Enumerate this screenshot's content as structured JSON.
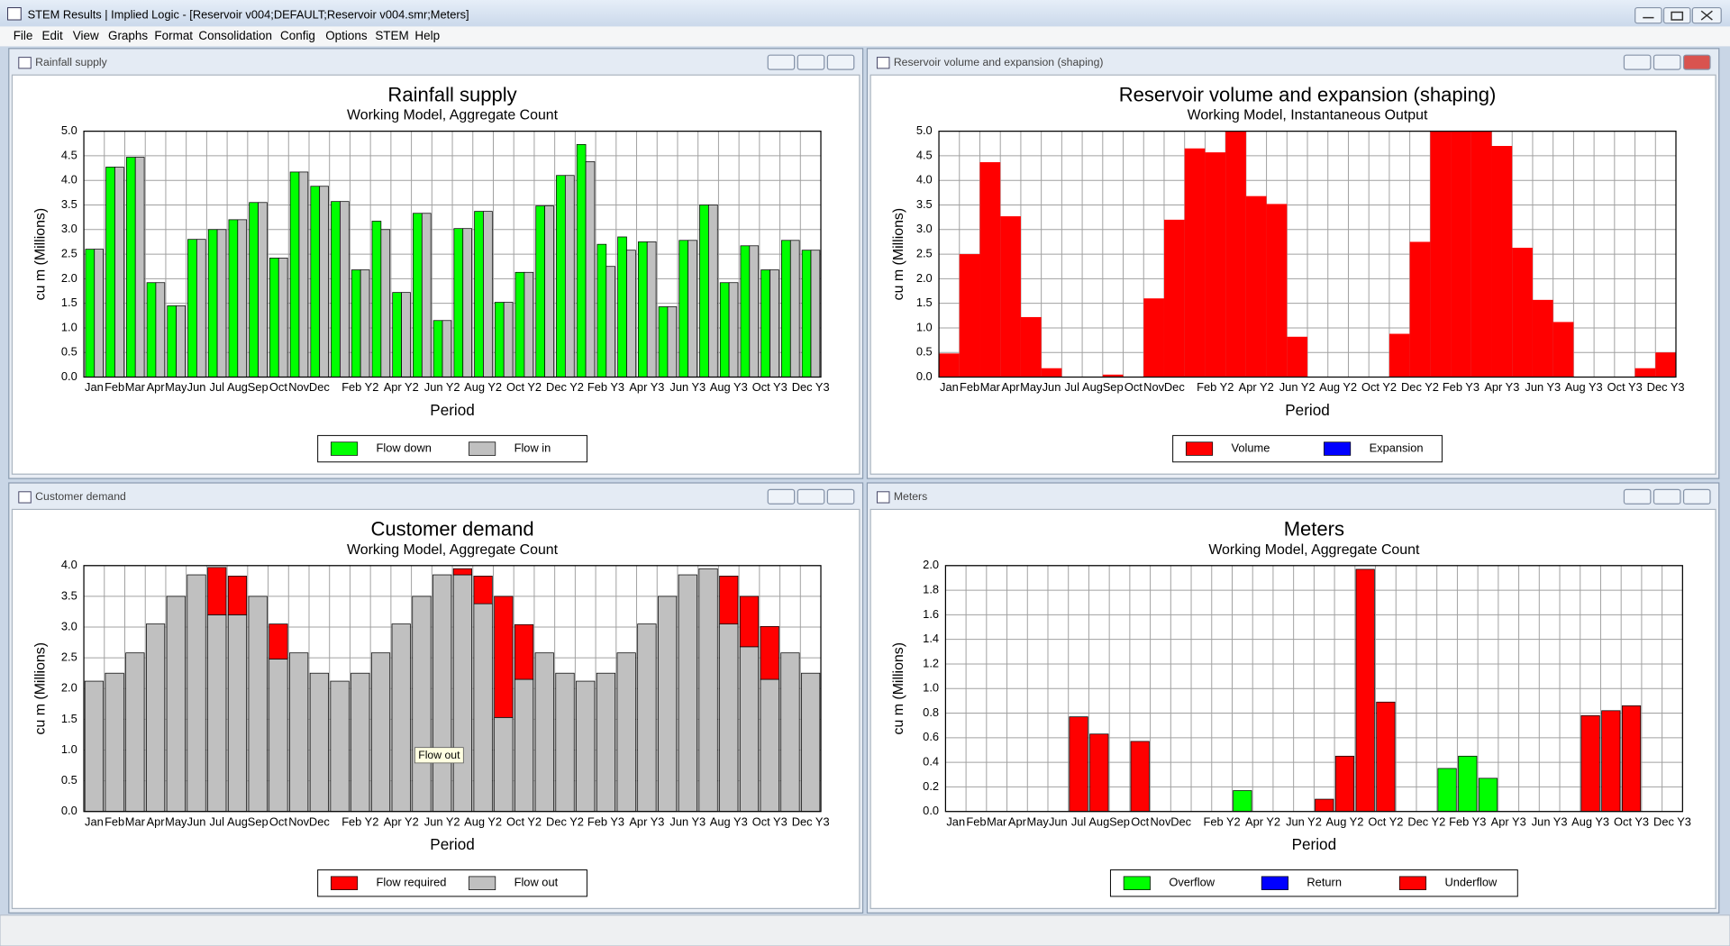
{
  "window": {
    "title": "STEM Results | Implied Logic - [Reservoir v004;DEFAULT;Reservoir v004.smr;Meters]",
    "menu": [
      "File",
      "Edit",
      "View",
      "Graphs",
      "Format",
      "Consolidation",
      "Config",
      "Options",
      "STEM",
      "Help"
    ]
  },
  "chart_data": [
    {
      "type": "bar",
      "title": "Rainfall supply",
      "subtitle": "Working Model, Aggregate Count",
      "x_label": "Period",
      "y_label": "cu m  (Millions)",
      "categories": [
        "Jan",
        "Feb",
        "Mar",
        "Apr",
        "May",
        "Jun",
        "Jul",
        "Aug",
        "Sep",
        "Oct",
        "Nov",
        "Dec",
        null,
        "Feb Y2",
        null,
        "Apr Y2",
        null,
        "Jun Y2",
        null,
        "Aug Y2",
        null,
        "Oct Y2",
        null,
        "Dec Y2",
        null,
        "Feb Y3",
        null,
        "Apr Y3",
        null,
        "Jun Y3",
        null,
        "Aug Y3",
        null,
        "Oct Y3",
        null,
        "Dec Y3"
      ],
      "series": [
        {
          "name": "Flow down",
          "color": "#00ff00",
          "values": [
            2.6,
            4.27,
            4.47,
            1.92,
            1.45,
            2.8,
            3.0,
            3.2,
            3.55,
            2.42,
            4.17,
            3.88,
            3.57,
            2.18,
            3.17,
            1.72,
            3.33,
            1.15,
            3.02,
            3.37,
            1.52,
            2.13,
            3.48,
            4.1,
            4.73,
            2.7,
            2.85,
            2.75,
            1.43,
            2.78,
            3.5,
            1.92,
            2.67,
            2.18,
            2.78,
            2.58
          ]
        },
        {
          "name": "Flow in",
          "color": "#c0c0c0",
          "values": [
            2.6,
            4.27,
            4.47,
            1.92,
            1.45,
            2.8,
            3.0,
            3.2,
            3.55,
            2.42,
            4.17,
            3.88,
            3.57,
            2.18,
            3.0,
            1.72,
            3.33,
            1.15,
            3.02,
            3.37,
            1.52,
            2.13,
            3.48,
            4.1,
            4.38,
            2.25,
            2.58,
            2.75,
            1.43,
            2.78,
            3.5,
            1.92,
            2.67,
            2.18,
            2.78,
            2.58
          ]
        }
      ],
      "ylim": [
        0,
        5
      ],
      "yticks": [
        {
          "value": 0,
          "label": "0.0"
        },
        0.5,
        {
          "value": 1,
          "label": "1.0"
        },
        1.5,
        {
          "value": 2,
          "label": "2.0"
        },
        2.5,
        {
          "value": 3,
          "label": "3.0"
        },
        3.5,
        {
          "value": 4,
          "label": "4.0"
        },
        4.5,
        {
          "value": 5,
          "label": "5.0"
        }
      ],
      "grid": true
    },
    {
      "type": "step",
      "title": "Reservoir volume and expansion (shaping)",
      "subtitle": "Working Model, Instantaneous Output",
      "x_label": "Period",
      "y_label": "cu m  (Millions)",
      "categories": [
        "Jan",
        "Feb",
        "Mar",
        "Apr",
        "May",
        "Jun",
        "Jul",
        "Aug",
        "Sep",
        "Oct",
        "Nov",
        "Dec",
        null,
        "Feb Y2",
        null,
        "Apr Y2",
        null,
        "Jun Y2",
        null,
        "Aug Y2",
        null,
        "Oct Y2",
        null,
        "Dec Y2",
        null,
        "Feb Y3",
        null,
        "Apr Y3",
        null,
        "Jun Y3",
        null,
        "Aug Y3",
        null,
        "Oct Y3",
        null,
        "Dec Y3"
      ],
      "series": [
        {
          "name": "Volume",
          "color": "#ff0000",
          "values": [
            0.48,
            2.5,
            4.37,
            3.27,
            1.22,
            0.18,
            0,
            0,
            0.05,
            0,
            1.6,
            3.2,
            4.65,
            4.57,
            5,
            3.68,
            3.52,
            0.82,
            0,
            0,
            0,
            0,
            0.88,
            2.75,
            5,
            5,
            5,
            4.7,
            2.63,
            1.57,
            1.12,
            0,
            0,
            0,
            0.18,
            0.5
          ]
        },
        {
          "name": "Expansion",
          "color": "#0000ff",
          "values": [
            0,
            0,
            0,
            0,
            0,
            0,
            0,
            0,
            0,
            0,
            0,
            0,
            0,
            0,
            0,
            0,
            0,
            0,
            0,
            0,
            0,
            0,
            0,
            0,
            0,
            0,
            0,
            0,
            0,
            0,
            0,
            0,
            0,
            0,
            0,
            0
          ]
        }
      ],
      "ylim": [
        0,
        5
      ],
      "yticks": [
        {
          "value": 0,
          "label": "0.0"
        },
        0.5,
        {
          "value": 1,
          "label": "1.0"
        },
        1.5,
        {
          "value": 2,
          "label": "2.0"
        },
        2.5,
        {
          "value": 3,
          "label": "3.0"
        },
        3.5,
        {
          "value": 4,
          "label": "4.0"
        },
        4.5,
        {
          "value": 5,
          "label": "5.0"
        }
      ],
      "grid": true
    },
    {
      "type": "bar",
      "stacked": true,
      "title": "Customer demand",
      "subtitle": "Working Model, Aggregate Count",
      "x_label": "Period",
      "y_label": "cu m  (Millions)",
      "tooltip": "Flow out",
      "categories": [
        "Jan",
        "Feb",
        "Mar",
        "Apr",
        "May",
        "Jun",
        "Jul",
        "Aug",
        "Sep",
        "Oct",
        "Nov",
        "Dec",
        null,
        "Feb Y2",
        null,
        "Apr Y2",
        null,
        "Jun Y2",
        null,
        "Aug Y2",
        null,
        "Oct Y2",
        null,
        "Dec Y2",
        null,
        "Feb Y3",
        null,
        "Apr Y3",
        null,
        "Jun Y3",
        null,
        "Aug Y3",
        null,
        "Oct Y3",
        null,
        "Dec Y3"
      ],
      "series": [
        {
          "name": "Flow required",
          "color": "#ff0000",
          "values": [
            0,
            0,
            0,
            0,
            0,
            0,
            0.77,
            0.63,
            0,
            0.57,
            0,
            0,
            0,
            0,
            0,
            0,
            0,
            0,
            0.1,
            0.45,
            1.97,
            0.89,
            0,
            0,
            0,
            0,
            0,
            0,
            0,
            0,
            0,
            0.78,
            0.82,
            0.86,
            0,
            0
          ]
        },
        {
          "name": "Flow out",
          "color": "#c0c0c0",
          "values": [
            2.12,
            2.25,
            2.58,
            3.05,
            3.5,
            3.85,
            3.2,
            3.2,
            3.5,
            2.48,
            2.58,
            2.25,
            2.12,
            2.25,
            2.58,
            3.05,
            3.5,
            3.85,
            3.85,
            3.38,
            1.53,
            2.15,
            2.58,
            2.25,
            2.12,
            2.25,
            2.58,
            3.05,
            3.5,
            3.85,
            3.95,
            3.05,
            2.68,
            2.15,
            2.58,
            2.25
          ]
        }
      ],
      "ylim": [
        0,
        4
      ],
      "yticks": [
        {
          "value": 0,
          "label": "0.0"
        },
        0.5,
        {
          "value": 1,
          "label": "1.0"
        },
        1.5,
        {
          "value": 2,
          "label": "2.0"
        },
        2.5,
        {
          "value": 3,
          "label": "3.0"
        },
        3.5,
        {
          "value": 4,
          "label": "4.0"
        }
      ],
      "grid": true
    },
    {
      "type": "bar",
      "stacked": true,
      "title": "Meters",
      "subtitle": "Working Model, Aggregate Count",
      "x_label": "Period",
      "y_label": "cu m  (Millions)",
      "categories": [
        "Jan",
        "Feb",
        "Mar",
        "Apr",
        "May",
        "Jun",
        "Jul",
        "Aug",
        "Sep",
        "Oct",
        "Nov",
        "Dec",
        null,
        "Feb Y2",
        null,
        "Apr Y2",
        null,
        "Jun Y2",
        null,
        "Aug Y2",
        null,
        "Oct Y2",
        null,
        "Dec Y2",
        null,
        "Feb Y3",
        null,
        "Apr Y3",
        null,
        "Jun Y3",
        null,
        "Aug Y3",
        null,
        "Oct Y3",
        null,
        "Dec Y3"
      ],
      "series": [
        {
          "name": "Overflow",
          "color": "#00ff00",
          "values": [
            0,
            0,
            0,
            0,
            0,
            0,
            0,
            0,
            0,
            0,
            0,
            0,
            0,
            0,
            0.17,
            0,
            0,
            0,
            0,
            0,
            0,
            0,
            0,
            0,
            0.35,
            0.45,
            0.27,
            0,
            0,
            0,
            0,
            0,
            0,
            0,
            0,
            0
          ]
        },
        {
          "name": "Return",
          "color": "#0000ff",
          "values": [
            0,
            0,
            0,
            0,
            0,
            0,
            0,
            0,
            0,
            0,
            0,
            0,
            0,
            0,
            0,
            0,
            0,
            0,
            0,
            0,
            0,
            0,
            0,
            0,
            0,
            0,
            0,
            0,
            0,
            0,
            0,
            0,
            0,
            0,
            0,
            0
          ]
        },
        {
          "name": "Underflow",
          "color": "#ff0000",
          "values": [
            0,
            0,
            0,
            0,
            0,
            0,
            0.77,
            0.63,
            0,
            0.57,
            0,
            0,
            0,
            0,
            0,
            0,
            0,
            0,
            0.1,
            0.45,
            1.97,
            0.89,
            0,
            0,
            0,
            0,
            0,
            0,
            0,
            0,
            0,
            0.78,
            0.82,
            0.86,
            0,
            0
          ]
        }
      ],
      "ylim": [
        0,
        2
      ],
      "yticks": [
        {
          "value": 0,
          "label": "0.0"
        },
        0.2,
        0.4,
        0.6,
        0.8,
        {
          "value": 1,
          "label": "1.0"
        },
        1.2,
        1.4,
        1.6,
        1.8,
        {
          "value": 2,
          "label": "2.0"
        }
      ],
      "grid": true
    }
  ]
}
